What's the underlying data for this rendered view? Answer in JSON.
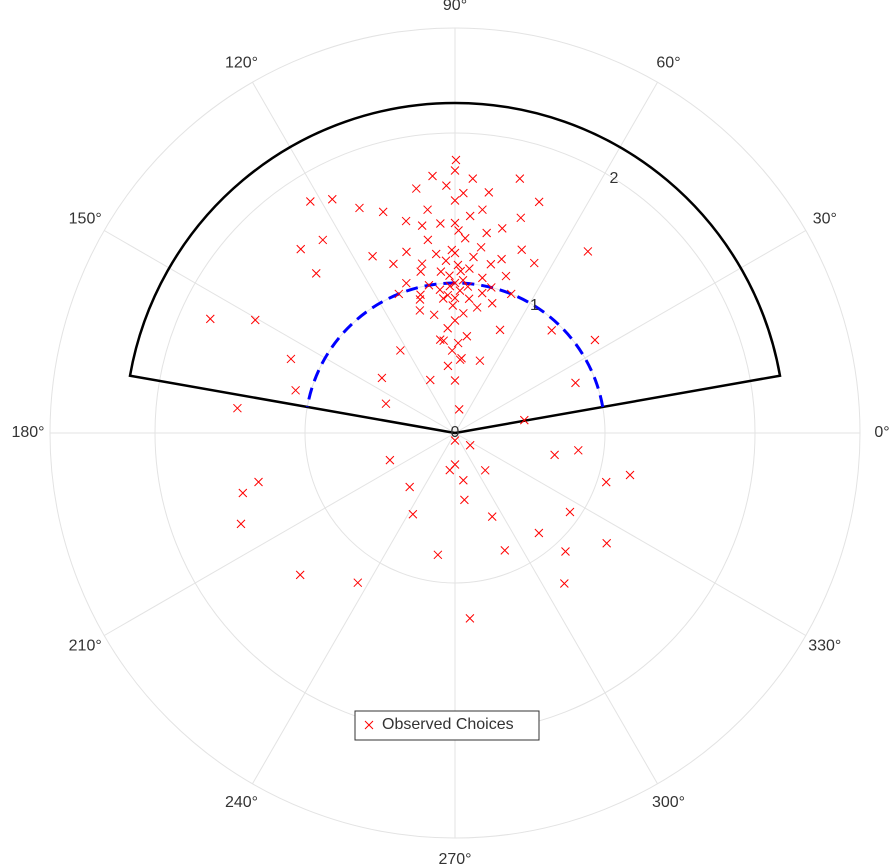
{
  "chart_data": {
    "type": "polar-scatter",
    "rlim": [
      0,
      2.7
    ],
    "rticks": [
      0,
      1,
      2
    ],
    "thetaticks": [
      {
        "value": 0,
        "label": "0°"
      },
      {
        "value": 30,
        "label": "30°"
      },
      {
        "value": 60,
        "label": "60°"
      },
      {
        "value": 90,
        "label": "90°"
      },
      {
        "value": 120,
        "label": "120°"
      },
      {
        "value": 150,
        "label": "150°"
      },
      {
        "value": 180,
        "label": "180°"
      },
      {
        "value": 210,
        "label": "210°"
      },
      {
        "value": 240,
        "label": "240°"
      },
      {
        "value": 270,
        "label": "270°"
      },
      {
        "value": 300,
        "label": "300°"
      },
      {
        "value": 330,
        "label": "330°"
      }
    ],
    "grid": true,
    "boundaries": [
      {
        "color": "#000000",
        "dashed": false,
        "theta": [
          10,
          10,
          170,
          170
        ],
        "r": [
          0,
          2.2,
          2.2,
          0
        ]
      },
      {
        "color": "#0000ff",
        "dashed": true,
        "theta": [
          10,
          170
        ],
        "r": [
          1,
          1
        ]
      }
    ],
    "series": [
      {
        "name": "Observed Choices",
        "color": "#ff0000",
        "theta": [
          90,
          88,
          92,
          85,
          95,
          90,
          87,
          93,
          91,
          89,
          80,
          100,
          84,
          96,
          82,
          98,
          78,
          102,
          86,
          94,
          90,
          88,
          92,
          83,
          97,
          76,
          104,
          80,
          100,
          90,
          86,
          94,
          75,
          105,
          72,
          108,
          70,
          110,
          88,
          92,
          89,
          91,
          87,
          93,
          85,
          95,
          84,
          96,
          90,
          90,
          81,
          99,
          79,
          101,
          77,
          103,
          90,
          86,
          95,
          99,
          82,
          74,
          106,
          68,
          112,
          65,
          115,
          73,
          108,
          88,
          92,
          85,
          96,
          90,
          83,
          97,
          155,
          150.5,
          173.5,
          155.7,
          165,
          195.8,
          194,
          203,
          222.5,
          237,
          274.6,
          306,
          313,
          324,
          346.5,
          342,
          325.5,
          53.8,
          75.7,
          70,
          89.8,
          122,
          117.7,
          124.4,
          130,
          131,
          113,
          157,
          347.6,
          352,
          10.5,
          230,
          242.6,
          262,
          293,
          294,
          280,
          270,
          202.6,
          310,
          22.6,
          46.7,
          33.6,
          115,
          86,
          99,
          71,
          123.5,
          66.4,
          104.7,
          80,
          270,
          321,
          262,
          278,
          143,
          309
        ],
        "r": [
          1.0,
          0.95,
          1.05,
          1.1,
          0.9,
          1.2,
          1.3,
          1.15,
          0.85,
          1.35,
          1.05,
          1.0,
          0.9,
          1.2,
          1.25,
          1.3,
          1.15,
          1.1,
          1.45,
          1.4,
          1.55,
          1.6,
          1.65,
          1.5,
          1.5,
          1.0,
          0.95,
          0.85,
          0.8,
          0.75,
          0.8,
          0.7,
          1.2,
          1.25,
          1.1,
          1.05,
          1.3,
          1.2,
          1.08,
          0.98,
          1.12,
          1.22,
          1.02,
          0.92,
          0.98,
          1.08,
          1.18,
          0.96,
          1.4,
          0.9,
          1.35,
          1.4,
          0.95,
          1.15,
          1.4,
          1.45,
          1.75,
          1.7,
          1.72,
          1.65,
          1.62,
          0.9,
          0.85,
          1.0,
          1.0,
          1.25,
          1.3,
          1.5,
          1.55,
          0.6,
          0.55,
          0.5,
          0.45,
          0.35,
          0.65,
          0.62,
          1.8,
          1.53,
          1.46,
          1.2,
          1.1,
          1.47,
          1.35,
          1.55,
          1.4,
          1.19,
          1.24,
          1.24,
          1.08,
          1.25,
          1.2,
          1.06,
          0.93,
          1.5,
          1.75,
          1.64,
          1.82,
          1.82,
          1.76,
          1.56,
          1.6,
          1.41,
          1.63,
          0.5,
          0.68,
          0.83,
          0.47,
          0.47,
          0.61,
          0.82,
          0.85,
          0.61,
          0.32,
          0.21,
          0.47,
          0.87,
          0.87,
          0.94,
          1.12,
          0.39,
          0.49,
          0.63,
          0.51,
          0.66,
          0.75,
          0.92,
          0.16,
          0.05,
          0.13,
          0.25,
          0.45,
          0.61,
          0.32
        ]
      }
    ]
  }
}
